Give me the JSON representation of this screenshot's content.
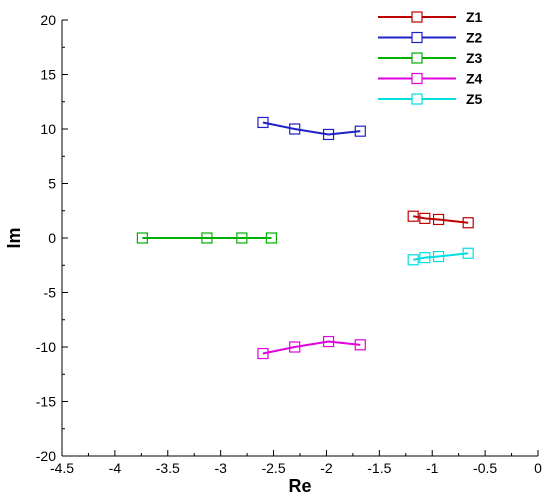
{
  "chart_data": {
    "type": "line",
    "xlabel": "Re",
    "ylabel": "Im",
    "xlim": [
      -4.5,
      0
    ],
    "ylim": [
      -20,
      20
    ],
    "xticks": [
      -4.5,
      -4,
      -3.5,
      -3,
      -2.5,
      -2,
      -1.5,
      -1,
      -0.5,
      0
    ],
    "xtick_labels": [
      "-4.5",
      "-4",
      "-3.5",
      "-3",
      "-2.5",
      "-2",
      "-1.5",
      "-1",
      "-0.5",
      "0"
    ],
    "yticks": [
      -20,
      -15,
      -10,
      -5,
      0,
      5,
      10,
      15,
      20
    ],
    "ytick_labels": [
      "-20",
      "-15",
      "-10",
      "-5",
      "0",
      "5",
      "10",
      "15",
      "20"
    ],
    "grid": false,
    "legend_position": "top-right",
    "marker": "open-square",
    "series": [
      {
        "name": "Z1",
        "color": "#c00000",
        "x": [
          -1.18,
          -1.07,
          -0.94,
          -0.66
        ],
        "y": [
          2.0,
          1.8,
          1.7,
          1.4
        ]
      },
      {
        "name": "Z2",
        "color": "#2020c8",
        "x": [
          -2.6,
          -2.3,
          -1.98,
          -1.68
        ],
        "y": [
          10.6,
          10.0,
          9.5,
          9.8
        ]
      },
      {
        "name": "Z3",
        "color": "#00b000",
        "x": [
          -3.74,
          -3.13,
          -2.8,
          -2.52
        ],
        "y": [
          0,
          0,
          0,
          0
        ]
      },
      {
        "name": "Z4",
        "color": "#e000e0",
        "x": [
          -2.6,
          -2.3,
          -1.98,
          -1.68
        ],
        "y": [
          -10.6,
          -10.0,
          -9.5,
          -9.8
        ]
      },
      {
        "name": "Z5",
        "color": "#00e0e0",
        "x": [
          -1.18,
          -1.07,
          -0.94,
          -0.66
        ],
        "y": [
          -2.0,
          -1.8,
          -1.7,
          -1.4
        ]
      }
    ]
  }
}
